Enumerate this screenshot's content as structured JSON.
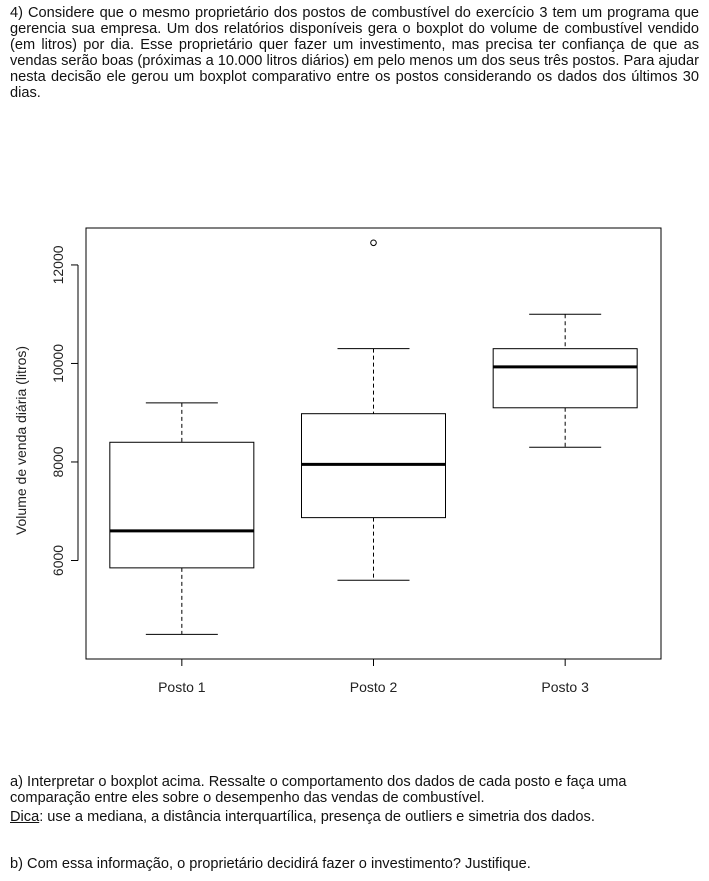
{
  "question": {
    "intro": "4) Considere que o mesmo proprietário dos postos de combustível do exercício 3 tem um programa que gerencia sua empresa. Um dos relatórios disponíveis gera o boxplot do volume de combustível vendido (em litros) por dia. Esse proprietário quer fazer um investimento, mas precisa ter confiança de que as vendas serão boas (próximas a 10.000 litros diários) em pelo menos um dos seus três postos. Para ajudar nesta decisão ele gerou um boxplot comparativo entre os postos considerando os dados dos últimos 30 dias.",
    "item_a": "a) Interpretar o boxplot acima. Ressalte o comportamento dos dados de cada posto e faça uma comparação entre eles sobre o desempenho das vendas de combustível.",
    "dica_label": "Dica",
    "dica_text": ": use a mediana, a distância interquartílica, presença de outliers e simetria dos dados.",
    "item_b": "b) Com essa informação, o proprietário decidirá fazer o investimento? Justifique."
  },
  "chart_data": {
    "type": "boxplot",
    "title": "",
    "xlabel": "",
    "ylabel": "Volume de venda diária (litros)",
    "categories": [
      "Posto 1",
      "Posto 2",
      "Posto 3"
    ],
    "boxes": [
      {
        "name": "Posto 1",
        "whisker_low": 4500,
        "q1": 5850,
        "median": 6600,
        "q3": 8400,
        "whisker_high": 9200,
        "outliers": []
      },
      {
        "name": "Posto 2",
        "whisker_low": 5600,
        "q1": 6870,
        "median": 7950,
        "q3": 8980,
        "whisker_high": 10300,
        "outliers": [
          12450
        ]
      },
      {
        "name": "Posto 3",
        "whisker_low": 8300,
        "q1": 9100,
        "median": 9930,
        "q3": 10300,
        "whisker_high": 11000,
        "outliers": []
      }
    ],
    "ylim": [
      4000,
      12750
    ],
    "yticks": [
      6000,
      8000,
      10000,
      12000
    ],
    "grid": false,
    "colors": {
      "box_fill": "#ffffff",
      "stroke": "#000000"
    }
  }
}
